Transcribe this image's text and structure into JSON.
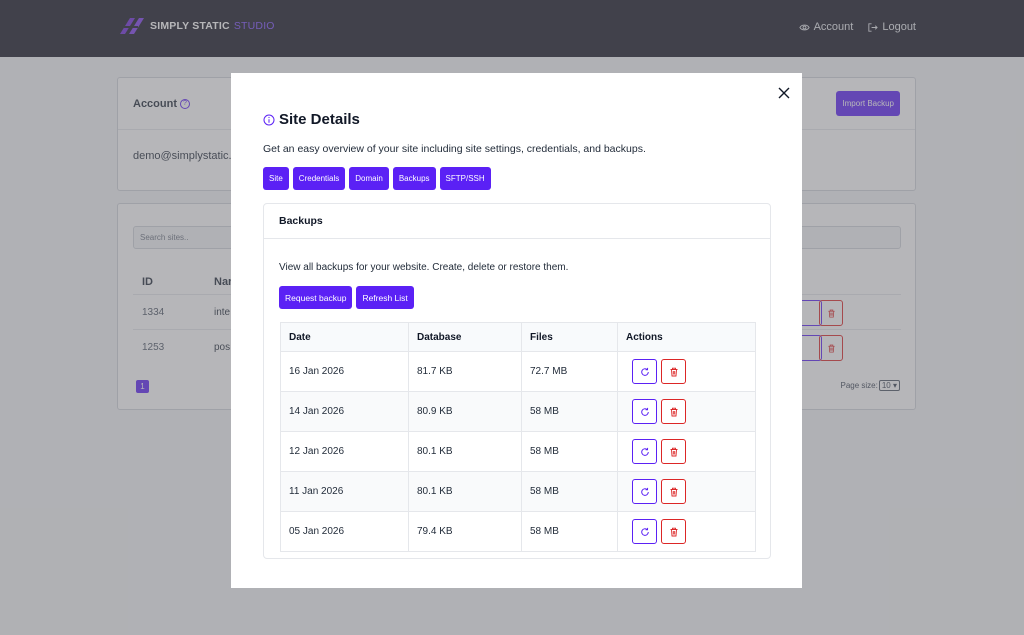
{
  "brand": {
    "name": "SIMPLY STATIC",
    "accent": "STUDIO",
    "color": "#5b21f5"
  },
  "topnav": {
    "account": "Account",
    "logout": "Logout"
  },
  "account_card": {
    "title": "Account",
    "email": "demo@simplystatic.c",
    "import_label": "Import Backup"
  },
  "sites_card": {
    "search_placeholder": "Search sites..",
    "col_id": "ID",
    "col_name": "Nar",
    "rows": [
      {
        "id": "1334",
        "name": "inte"
      },
      {
        "id": "1253",
        "name": "pos"
      }
    ],
    "page": "1",
    "page_size_label": "Page size:",
    "page_size": "10"
  },
  "modal": {
    "title": "Site Details",
    "description": "Get an easy overview of your site including site settings, credentials, and backups.",
    "tabs": [
      "Site",
      "Credentials",
      "Domain",
      "Backups",
      "SFTP/SSH"
    ],
    "panel": {
      "title": "Backups",
      "description": "View all backups for your website. Create, delete or restore them.",
      "request_label": "Request backup",
      "refresh_label": "Refresh List",
      "columns": [
        "Date",
        "Database",
        "Files",
        "Actions"
      ],
      "rows": [
        {
          "date": "16 Jan 2026",
          "database": "81.7 KB",
          "files": "72.7 MB"
        },
        {
          "date": "14 Jan 2026",
          "database": "80.9 KB",
          "files": "58 MB"
        },
        {
          "date": "12 Jan 2026",
          "database": "80.1 KB",
          "files": "58 MB"
        },
        {
          "date": "11 Jan 2026",
          "database": "80.1 KB",
          "files": "58 MB"
        },
        {
          "date": "05 Jan 2026",
          "database": "79.4 KB",
          "files": "58 MB"
        }
      ]
    }
  }
}
